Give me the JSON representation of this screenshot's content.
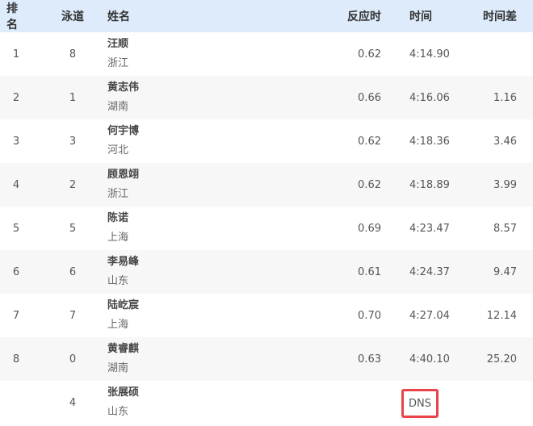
{
  "header": {
    "rank": "排名",
    "lane": "泳道",
    "name": "姓名",
    "reaction": "反应时",
    "time": "时间",
    "diff": "时间差"
  },
  "rows": [
    {
      "rank": "1",
      "lane": "8",
      "name": "汪顺",
      "province": "浙江",
      "reaction": "0.62",
      "time": "4:14.90",
      "diff": ""
    },
    {
      "rank": "2",
      "lane": "1",
      "name": "黄志伟",
      "province": "湖南",
      "reaction": "0.66",
      "time": "4:16.06",
      "diff": "1.16"
    },
    {
      "rank": "3",
      "lane": "3",
      "name": "何宇博",
      "province": "河北",
      "reaction": "0.62",
      "time": "4:18.36",
      "diff": "3.46"
    },
    {
      "rank": "4",
      "lane": "2",
      "name": "顾恩翊",
      "province": "浙江",
      "reaction": "0.62",
      "time": "4:18.89",
      "diff": "3.99"
    },
    {
      "rank": "5",
      "lane": "5",
      "name": "陈诺",
      "province": "上海",
      "reaction": "0.69",
      "time": "4:23.47",
      "diff": "8.57"
    },
    {
      "rank": "6",
      "lane": "6",
      "name": "李易峰",
      "province": "山东",
      "reaction": "0.61",
      "time": "4:24.37",
      "diff": "9.47"
    },
    {
      "rank": "7",
      "lane": "7",
      "name": "陆屹宸",
      "province": "上海",
      "reaction": "0.70",
      "time": "4:27.04",
      "diff": "12.14"
    },
    {
      "rank": "8",
      "lane": "0",
      "name": "黄睿麒",
      "province": "湖南",
      "reaction": "0.63",
      "time": "4:40.10",
      "diff": "25.20"
    },
    {
      "rank": "",
      "lane": "4",
      "name": "张展硕",
      "province": "山东",
      "reaction": "",
      "time": "DNS",
      "diff": ""
    }
  ],
  "colors": {
    "header_bg": "#deebfb",
    "highlight": "#e8444a"
  }
}
